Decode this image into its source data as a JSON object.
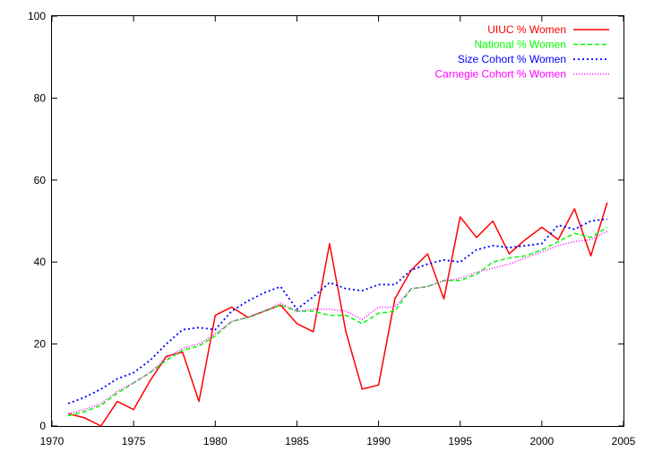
{
  "chart_data": {
    "type": "line",
    "title": "",
    "xlabel": "",
    "ylabel": "",
    "xlim": [
      1970,
      2005
    ],
    "ylim": [
      0,
      100
    ],
    "xticks": [
      1970,
      1975,
      1980,
      1985,
      1990,
      1995,
      2000,
      2005
    ],
    "yticks": [
      0,
      20,
      40,
      60,
      80,
      100
    ],
    "grid": false,
    "legend_position": "top-right",
    "x": [
      1971,
      1972,
      1973,
      1974,
      1975,
      1976,
      1977,
      1978,
      1979,
      1980,
      1981,
      1982,
      1983,
      1984,
      1985,
      1986,
      1987,
      1988,
      1989,
      1990,
      1991,
      1992,
      1993,
      1994,
      1995,
      1996,
      1997,
      1998,
      1999,
      2000,
      2001,
      2002,
      2003,
      2004
    ],
    "series": [
      {
        "name": "UIUC % Women",
        "color": "#ff0000",
        "style": "solid",
        "values": [
          3.0,
          2.0,
          0.0,
          6.0,
          4.0,
          11.0,
          17.0,
          18.0,
          6.0,
          27.0,
          29.0,
          26.5,
          28.0,
          29.5,
          25.0,
          23.0,
          44.5,
          23.0,
          9.0,
          10.0,
          31.0,
          38.0,
          42.0,
          31.0,
          51.0,
          46.0,
          50.0,
          42.0,
          45.5,
          48.5,
          45.5,
          53.0,
          41.5,
          54.5
        ]
      },
      {
        "name": "National % Women",
        "color": "#00ff00",
        "style": "dashed",
        "values": [
          2.5,
          3.5,
          5.0,
          8.0,
          10.5,
          13.0,
          16.0,
          18.5,
          19.5,
          22.0,
          25.5,
          26.5,
          28.0,
          29.5,
          28.0,
          28.0,
          27.0,
          27.0,
          25.0,
          27.5,
          28.0,
          33.5,
          34.0,
          35.5,
          35.5,
          37.0,
          40.0,
          41.0,
          41.5,
          43.0,
          45.0,
          47.0,
          46.0,
          48.5
        ]
      },
      {
        "name": "Size Cohort % Women",
        "color": "#0000ff",
        "style": "dotted",
        "values": [
          5.5,
          7.0,
          9.0,
          11.5,
          13.0,
          16.0,
          20.0,
          23.5,
          24.0,
          23.5,
          28.0,
          30.5,
          32.5,
          34.0,
          28.5,
          31.5,
          35.0,
          33.5,
          33.0,
          34.5,
          34.5,
          38.0,
          39.5,
          40.5,
          40.0,
          43.0,
          44.0,
          43.5,
          44.0,
          44.5,
          49.0,
          48.0,
          50.0,
          50.5
        ]
      },
      {
        "name": "Carnegie Cohort % Women",
        "color": "#ff00ff",
        "style": "dotted-fine",
        "values": [
          3.0,
          4.0,
          5.5,
          8.5,
          10.5,
          13.0,
          16.5,
          19.0,
          20.0,
          22.5,
          25.5,
          26.5,
          28.0,
          30.0,
          28.0,
          28.5,
          28.5,
          28.0,
          26.0,
          29.0,
          29.0,
          33.5,
          34.0,
          35.5,
          36.0,
          37.5,
          38.5,
          39.5,
          41.0,
          42.5,
          44.0,
          45.0,
          45.5,
          47.5
        ]
      }
    ]
  }
}
